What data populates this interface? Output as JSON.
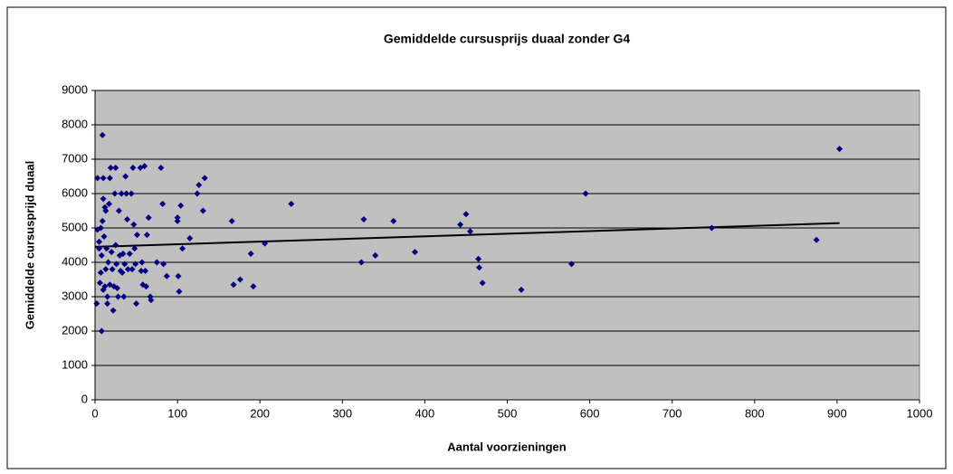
{
  "chart_data": {
    "type": "scatter",
    "title": "Gemiddelde cursusprijs duaal zonder G4",
    "x_label": "Aantal voorzieningen",
    "y_label": "Gemiddelde cursusprijd duaal",
    "xlim": [
      0,
      1000
    ],
    "xticks": [
      0,
      100,
      200,
      300,
      400,
      500,
      600,
      700,
      800,
      900,
      1000
    ],
    "ylim": [
      0,
      9000
    ],
    "yticks": [
      0,
      1000,
      2000,
      3000,
      4000,
      5000,
      6000,
      7000,
      8000,
      9000
    ],
    "grid": true,
    "color": "#000080",
    "x": [
      2,
      3,
      3,
      5,
      5,
      6,
      7,
      7,
      8,
      8,
      9,
      9,
      10,
      10,
      10,
      11,
      12,
      12,
      13,
      13,
      14,
      15,
      15,
      16,
      17,
      18,
      18,
      19,
      20,
      21,
      22,
      23,
      24,
      25,
      25,
      26,
      27,
      28,
      29,
      30,
      31,
      32,
      33,
      34,
      35,
      36,
      37,
      38,
      39,
      40,
      42,
      44,
      45,
      46,
      47,
      48,
      49,
      50,
      51,
      55,
      56,
      57,
      58,
      60,
      61,
      62,
      63,
      65,
      67,
      68,
      75,
      80,
      82,
      83,
      87,
      100,
      100,
      101,
      102,
      104,
      106,
      115,
      124,
      126,
      131,
      133,
      166,
      168,
      176,
      189,
      192,
      206,
      238,
      323,
      326,
      340,
      362,
      388,
      443,
      450,
      455,
      465,
      466,
      470,
      517,
      578,
      595,
      748,
      875,
      903
    ],
    "values": [
      2800,
      4950,
      6450,
      4600,
      4400,
      3400,
      3700,
      5000,
      4200,
      2000,
      7700,
      5200,
      6450,
      5850,
      3200,
      4750,
      5600,
      3300,
      5500,
      3800,
      4400,
      2800,
      3000,
      4000,
      5700,
      6450,
      3350,
      6750,
      4300,
      3800,
      2600,
      3300,
      6000,
      6750,
      4500,
      3950,
      3250,
      3000,
      5500,
      4200,
      3750,
      6000,
      3700,
      4250,
      3000,
      3950,
      6500,
      6000,
      5250,
      3800,
      4250,
      6000,
      3800,
      6750,
      5100,
      4400,
      3950,
      2800,
      4800,
      6750,
      3750,
      4000,
      3350,
      6800,
      3750,
      3300,
      4800,
      5300,
      3000,
      2900,
      4000,
      6750,
      5700,
      3950,
      3600,
      5200,
      5300,
      3600,
      3150,
      5650,
      4400,
      4700,
      6000,
      6250,
      5500,
      6450,
      5200,
      3350,
      3500,
      4250,
      3300,
      4550,
      5700,
      4000,
      5250,
      4200,
      5200,
      4300,
      5100,
      5400,
      4900,
      4100,
      3850,
      3400,
      3200,
      3950,
      6000,
      5000,
      4650,
      7300
    ],
    "trendline": {
      "x": [
        0,
        903
      ],
      "values": [
        4450,
        5140
      ]
    }
  }
}
